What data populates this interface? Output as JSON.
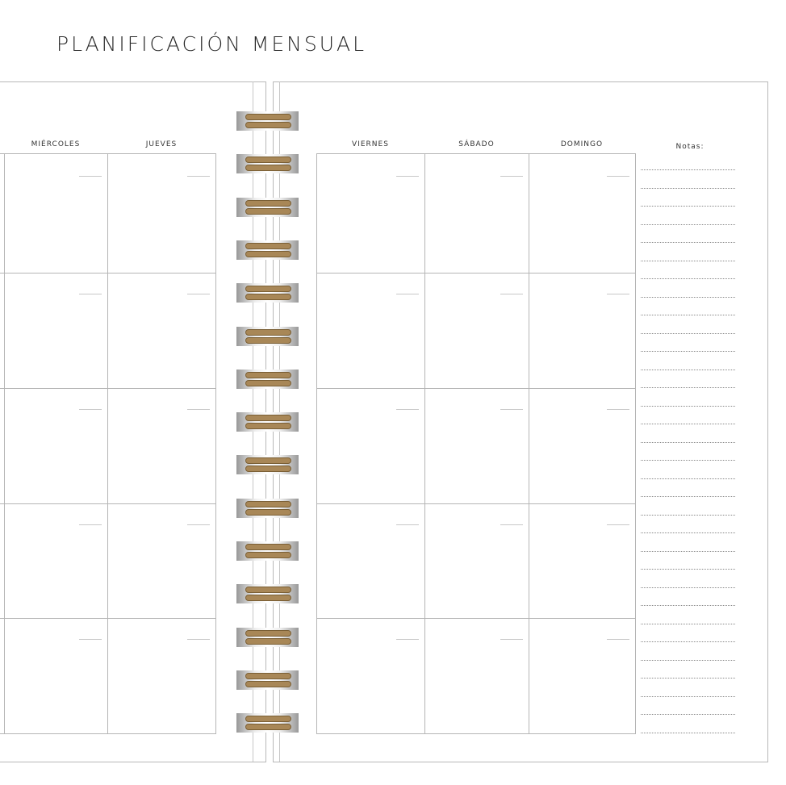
{
  "title": "PLANIFICACIÓN MENSUAL",
  "left_page": {
    "days": [
      "MIÉRCOLES",
      "JUEVES"
    ]
  },
  "right_page": {
    "days": [
      "VIERNES",
      "SÁBADO",
      "DOMINGO"
    ],
    "notes_label": "Notas:"
  },
  "weeks": 5,
  "colors": {
    "ring_wire": "#a88757",
    "grid": "#b5b5b5"
  }
}
